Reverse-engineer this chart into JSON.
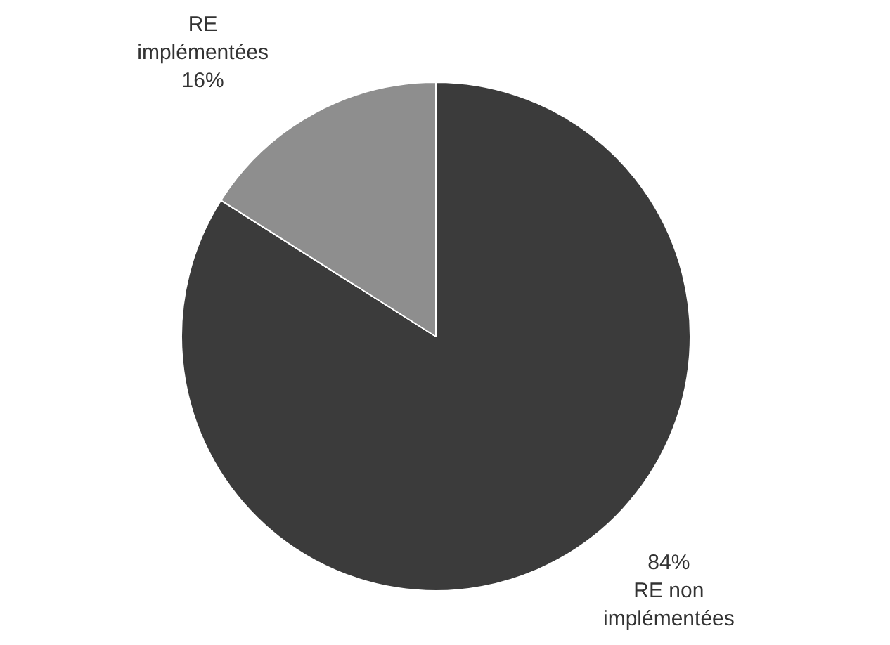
{
  "chart_data": {
    "type": "pie",
    "categories": [
      "RE non implémentées",
      "RE implémentées"
    ],
    "values": [
      84,
      16
    ],
    "value_labels": [
      "84%",
      "16%"
    ],
    "colors": [
      "#3b3b3b",
      "#8e8e8e"
    ],
    "legend": false
  }
}
